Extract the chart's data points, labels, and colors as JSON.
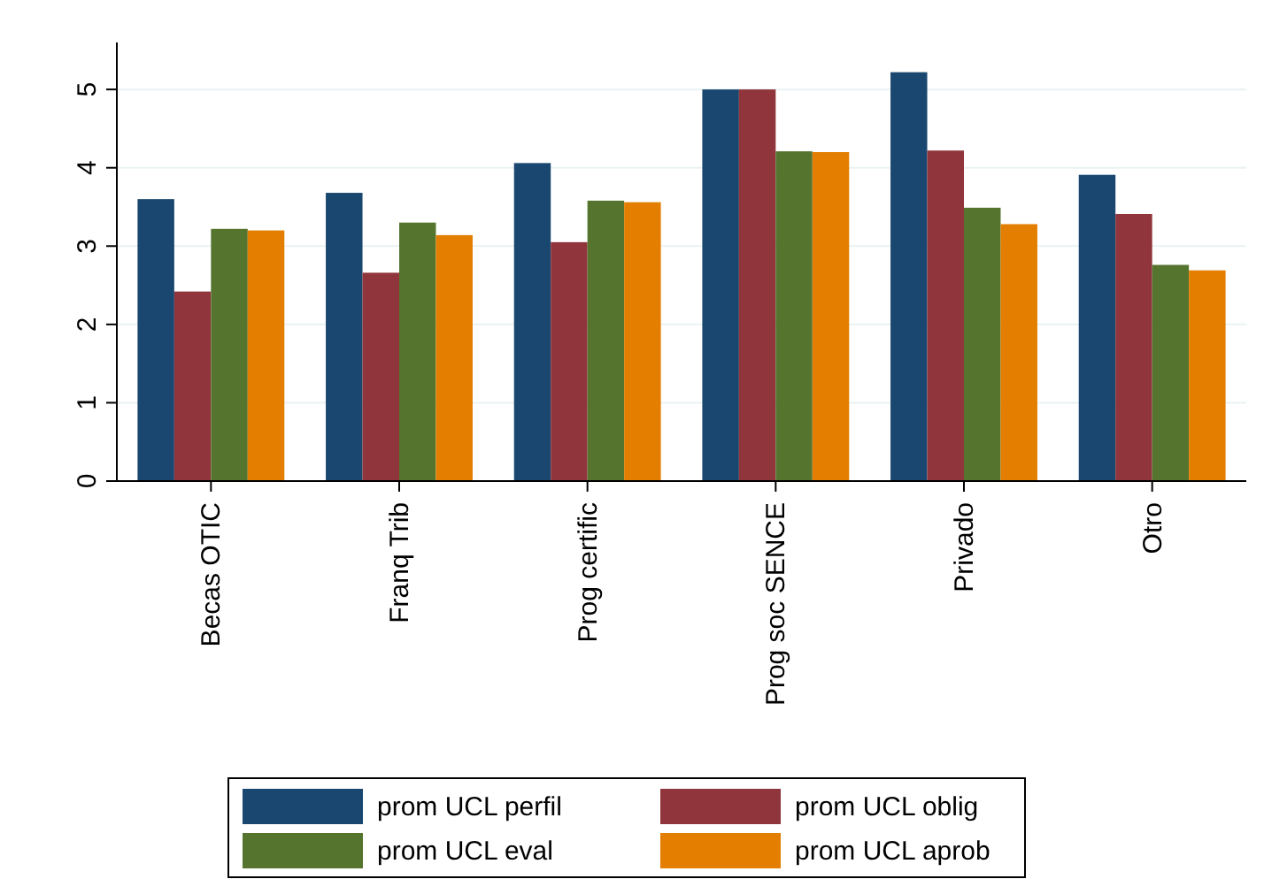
{
  "chart_data": {
    "type": "bar",
    "categories": [
      "Becas OTIC",
      "Franq Trib",
      "Prog certific",
      "Prog soc SENCE",
      "Privado",
      "Otro"
    ],
    "series": [
      {
        "name": "prom UCL perfil",
        "color": "#1a476f",
        "values": [
          3.6,
          3.68,
          4.06,
          5.0,
          5.22,
          3.91
        ]
      },
      {
        "name": "prom UCL oblig",
        "color": "#90353b",
        "values": [
          2.42,
          2.66,
          3.05,
          5.0,
          4.22,
          3.41
        ]
      },
      {
        "name": "prom UCL eval",
        "color": "#55752f",
        "values": [
          3.22,
          3.3,
          3.58,
          4.21,
          3.49,
          2.76
        ]
      },
      {
        "name": "prom UCL aprob",
        "color": "#e37e00",
        "values": [
          3.2,
          3.14,
          3.56,
          4.2,
          3.28,
          2.69
        ]
      }
    ],
    "ylim": [
      0,
      5.6
    ],
    "yticks": [
      0,
      1,
      2,
      3,
      4,
      5
    ],
    "grid": "y",
    "legend": "bottom"
  }
}
